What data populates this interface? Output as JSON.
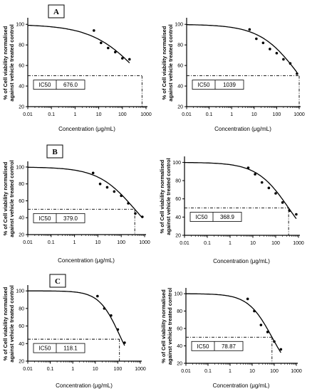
{
  "figure": {
    "y_axis_label_line1": "% of Cell viability normalised",
    "y_axis_label_line2": "against vehicle treated control",
    "x_axis_label": "Concentration (μg/mL)",
    "ic50_label": "IC50",
    "panel_letters": [
      "A",
      "B",
      "C"
    ]
  },
  "chart_data": [
    {
      "type": "scatter",
      "panel_letter": "A",
      "xlabel": "Concentration (μg/mL)",
      "ylabel": "% of Cell viability normalised against vehicle treated control",
      "xscale": "log",
      "xlim": [
        0.01,
        1000
      ],
      "ylim": [
        20,
        105
      ],
      "xticks": [
        "0.01",
        "0.1",
        "1",
        "10",
        "100",
        "1000"
      ],
      "yticks": [
        20,
        40,
        60,
        80,
        100
      ],
      "points": {
        "x": [
          6.25,
          12.5,
          25,
          50,
          100,
          200
        ],
        "y": [
          94,
          82,
          77,
          73,
          67,
          66
        ]
      },
      "fit": {
        "top": 100,
        "bottom": 0,
        "hill": 0.42
      },
      "ic50": "676.0",
      "ic50_value": 676.0,
      "ic50_level": 50
    },
    {
      "type": "scatter",
      "panel_letter": "",
      "xlabel": "Concentration (μg/mL)",
      "ylabel": "% of Cell viability normalised against vehicle treated control",
      "xscale": "log",
      "xlim": [
        0.01,
        1000
      ],
      "ylim": [
        20,
        105
      ],
      "xticks": [
        "0.01",
        "0.1",
        "1",
        "10",
        "100",
        "1000"
      ],
      "yticks": [
        20,
        40,
        60,
        80,
        100
      ],
      "points": {
        "x": [
          6.25,
          12.5,
          25,
          50,
          100,
          200,
          400,
          800
        ],
        "y": [
          95,
          86,
          82,
          76,
          72,
          66,
          62,
          52
        ]
      },
      "fit": {
        "top": 100,
        "bottom": 0,
        "hill": 0.5
      },
      "ic50": "1039",
      "ic50_value": 1039,
      "ic50_level": 50
    },
    {
      "type": "scatter",
      "panel_letter": "B",
      "xlabel": "Concentration (μg/mL)",
      "ylabel": "% of Cell viability normalised against vehicle treated control",
      "xscale": "log",
      "xlim": [
        0.01,
        1000
      ],
      "ylim": [
        20,
        105
      ],
      "xticks": [
        "0.01",
        "0.1",
        "1",
        "10",
        "100",
        "1000"
      ],
      "yticks": [
        20,
        40,
        60,
        80,
        100
      ],
      "points": {
        "x": [
          6.25,
          12.5,
          25,
          50,
          100,
          200,
          400,
          800
        ],
        "y": [
          93,
          80,
          76,
          71,
          66,
          57,
          45,
          41
        ]
      },
      "fit": {
        "top": 100,
        "bottom": 0,
        "hill": 0.55
      },
      "ic50": "379.0",
      "ic50_value": 379.0,
      "ic50_level": 50
    },
    {
      "type": "scatter",
      "panel_letter": "",
      "xlabel": "Concentration (μg/mL)",
      "ylabel": "% of Cell viability normalised against vehicle treated control",
      "xscale": "log",
      "xlim": [
        0.01,
        1000
      ],
      "ylim": [
        20,
        105
      ],
      "xticks": [
        "0.01",
        "0.1",
        "1",
        "10",
        "100",
        "1000"
      ],
      "yticks": [
        20,
        40,
        60,
        80,
        100
      ],
      "points": {
        "x": [
          6.25,
          12.5,
          25,
          50,
          100,
          200,
          400,
          800
        ],
        "y": [
          94,
          87,
          78,
          72,
          66,
          56,
          47,
          43
        ]
      },
      "fit": {
        "top": 100,
        "bottom": 0,
        "hill": 0.62
      },
      "ic50": "368.9",
      "ic50_value": 368.9,
      "ic50_level": 50
    },
    {
      "type": "scatter",
      "panel_letter": "C",
      "xlabel": "Concentration (μg/mL)",
      "ylabel": "% of Cell viability normalised against vehicle treated control",
      "xscale": "log",
      "xlim": [
        0.01,
        1000
      ],
      "ylim": [
        20,
        105
      ],
      "xticks": [
        "0.01",
        "0.1",
        "1",
        "10",
        "100",
        "1000"
      ],
      "yticks": [
        20,
        40,
        60,
        80,
        100
      ],
      "points": {
        "x": [
          12.5,
          25,
          50,
          100,
          200
        ],
        "y": [
          94,
          80,
          72,
          56,
          41
        ]
      },
      "fit": {
        "top": 100,
        "bottom": 0,
        "hill": 0.95
      },
      "ic50": "118.1",
      "ic50_value": 118.1,
      "ic50_level": 45
    },
    {
      "type": "scatter",
      "panel_letter": "",
      "xlabel": "Concentration (μg/mL)",
      "ylabel": "% of Cell viability normalised against vehicle treated control",
      "xscale": "log",
      "xlim": [
        0.01,
        1000
      ],
      "ylim": [
        20,
        105
      ],
      "xticks": [
        "0.01",
        "0.1",
        "1",
        "10",
        "100",
        "1000"
      ],
      "yticks": [
        20,
        40,
        60,
        80,
        100
      ],
      "points": {
        "x": [
          6.25,
          12.5,
          25,
          50,
          100,
          200
        ],
        "y": [
          94,
          80,
          64,
          56,
          45,
          36
        ]
      },
      "fit": {
        "top": 100,
        "bottom": 0,
        "hill": 0.8
      },
      "ic50": "78.87",
      "ic50_value": 78.87,
      "ic50_level": 50
    }
  ]
}
